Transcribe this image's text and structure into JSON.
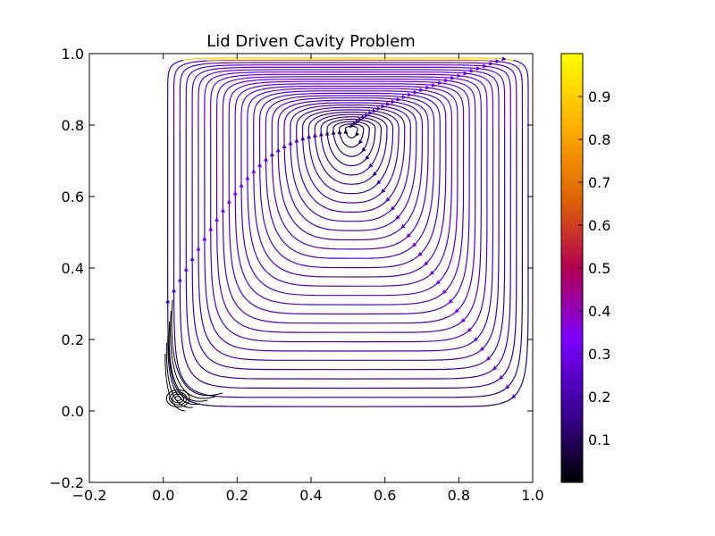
{
  "chart_data": {
    "type": "streamplot",
    "title": "Lid Driven Cavity Problem",
    "xlabel": "",
    "ylabel": "",
    "xlim": [
      -0.2,
      1.0
    ],
    "ylim": [
      -0.2,
      1.0
    ],
    "x_ticks": [
      -0.2,
      0.0,
      0.2,
      0.4,
      0.6,
      0.8,
      1.0
    ],
    "y_ticks": [
      -0.2,
      0.0,
      0.2,
      0.4,
      0.6,
      0.8,
      1.0
    ],
    "x_tick_labels": [
      "−0.2",
      "0.0",
      "0.2",
      "0.4",
      "0.6",
      "0.8",
      "1.0"
    ],
    "y_tick_labels": [
      "−0.2",
      "0.0",
      "0.2",
      "0.4",
      "0.6",
      "0.8",
      "1.0"
    ],
    "domain": {
      "x": [
        0.0,
        1.0
      ],
      "y": [
        0.0,
        1.0
      ]
    },
    "primary_vortex_center": [
      0.51,
      0.79
    ],
    "corner_vortex_center": [
      0.04,
      0.035
    ],
    "circulation": "clockwise",
    "grid": false,
    "colormap": "gnuplot",
    "colormap_stops": [
      "#000000",
      "#3b0096",
      "#7a00ff",
      "#b30050",
      "#e06600",
      "#ffb000",
      "#ffff00"
    ],
    "colorbar": {
      "range": [
        0.0,
        1.0
      ],
      "ticks": [
        0.1,
        0.2,
        0.3,
        0.4,
        0.5,
        0.6,
        0.7,
        0.8,
        0.9
      ],
      "tick_labels": [
        "0.1",
        "0.2",
        "0.3",
        "0.4",
        "0.5",
        "0.6",
        "0.7",
        "0.8",
        "0.9"
      ]
    }
  }
}
